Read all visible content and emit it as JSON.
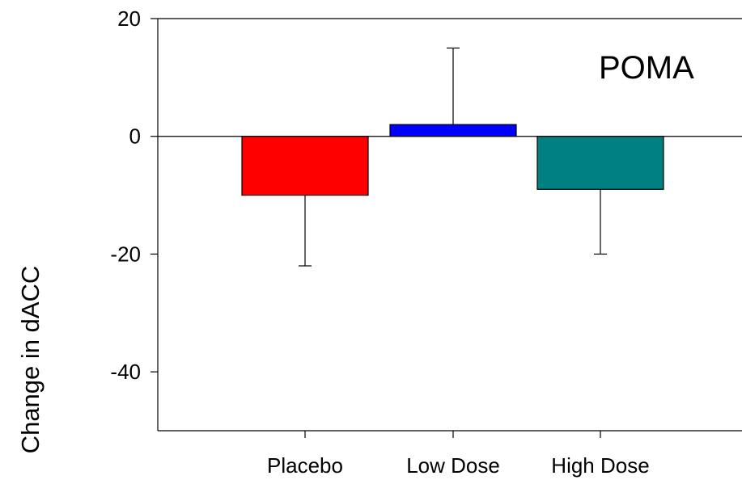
{
  "chart_data": {
    "type": "bar",
    "title": "",
    "ylabel": "Change in dACC",
    "xlabel": "",
    "annotation": "POMA",
    "ylim": [
      -50,
      20
    ],
    "yticks": [
      20,
      0,
      -20,
      -40
    ],
    "categories": [
      "Placebo",
      "Low Dose",
      "High Dose"
    ],
    "values": [
      -10,
      2,
      -9
    ],
    "error_bars": [
      {
        "low": -22,
        "high": -10
      },
      {
        "low": 2,
        "high": 15
      },
      {
        "low": -20,
        "high": -9
      }
    ],
    "colors": [
      "#ff0000",
      "#0000ff",
      "#008080"
    ],
    "grid": false,
    "legend": "none"
  }
}
